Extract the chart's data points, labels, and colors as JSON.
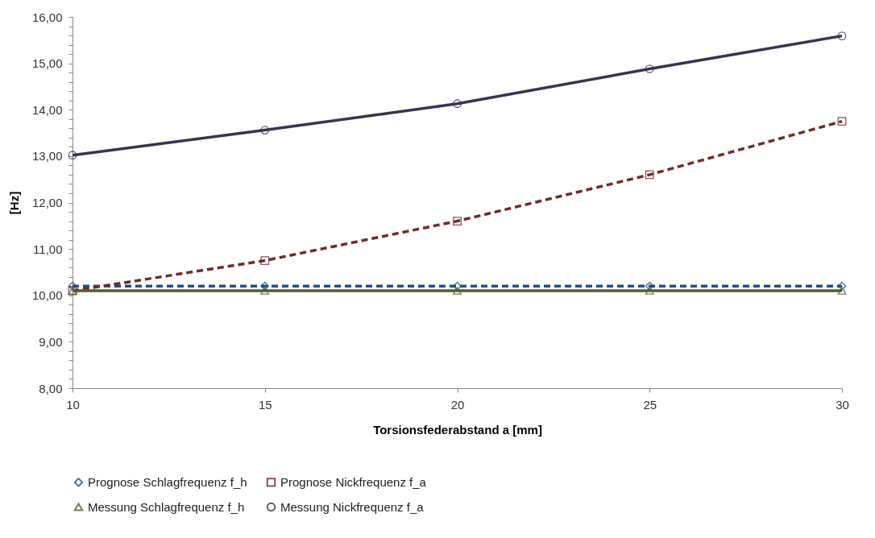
{
  "chart_data": {
    "type": "line",
    "xlabel": "Torsionsfederabstand a [mm]",
    "ylabel": "[Hz]",
    "x": [
      10,
      15,
      20,
      25,
      30
    ],
    "xlim": [
      10,
      30
    ],
    "xticks": [
      10,
      15,
      20,
      25,
      30
    ],
    "ylim": [
      8,
      16
    ],
    "yticks": [
      {
        "value": 8,
        "label": "8,00"
      },
      {
        "value": 8.2,
        "label": null
      },
      {
        "value": 8.4,
        "label": null
      },
      {
        "value": 8.6,
        "label": null
      },
      {
        "value": 8.8,
        "label": null
      },
      {
        "value": 9,
        "label": "9,00"
      },
      {
        "value": 9.2,
        "label": null
      },
      {
        "value": 9.4,
        "label": null
      },
      {
        "value": 9.6,
        "label": null
      },
      {
        "value": 9.8,
        "label": null
      },
      {
        "value": 10,
        "label": "10,00"
      },
      {
        "value": 10.2,
        "label": null
      },
      {
        "value": 10.4,
        "label": null
      },
      {
        "value": 10.6,
        "label": null
      },
      {
        "value": 10.8,
        "label": null
      },
      {
        "value": 11,
        "label": "11,00"
      },
      {
        "value": 11.2,
        "label": null
      },
      {
        "value": 11.4,
        "label": null
      },
      {
        "value": 11.6,
        "label": null
      },
      {
        "value": 11.8,
        "label": null
      },
      {
        "value": 12,
        "label": "12,00"
      },
      {
        "value": 12.2,
        "label": null
      },
      {
        "value": 12.4,
        "label": null
      },
      {
        "value": 12.6,
        "label": null
      },
      {
        "value": 12.8,
        "label": null
      },
      {
        "value": 13,
        "label": "13,00"
      },
      {
        "value": 13.2,
        "label": null
      },
      {
        "value": 13.4,
        "label": null
      },
      {
        "value": 13.6,
        "label": null
      },
      {
        "value": 13.8,
        "label": null
      },
      {
        "value": 14,
        "label": "14,00"
      },
      {
        "value": 14.2,
        "label": null
      },
      {
        "value": 14.4,
        "label": null
      },
      {
        "value": 14.6,
        "label": null
      },
      {
        "value": 14.8,
        "label": null
      },
      {
        "value": 15,
        "label": "15,00"
      },
      {
        "value": 15.2,
        "label": null
      },
      {
        "value": 15.4,
        "label": null
      },
      {
        "value": 15.6,
        "label": null
      },
      {
        "value": 15.8,
        "label": null
      },
      {
        "value": 16,
        "label": "16,00"
      }
    ],
    "grid": false,
    "legend": "bottom",
    "series": [
      {
        "name": "Prognose Schlagfrequenz f_h",
        "color": "#1f4e8c",
        "line_style": "dashed",
        "marker": "diamond",
        "values": [
          10.2,
          10.2,
          10.2,
          10.2,
          10.2
        ]
      },
      {
        "name": "Prognose Nickfrequenz f_a",
        "color": "#722a2a",
        "line_style": "dashed",
        "marker": "square",
        "values": [
          10.1,
          10.75,
          11.6,
          12.6,
          13.75
        ]
      },
      {
        "name": "Messung Schlagfrequenz f_h",
        "color": "#4f6228",
        "line_style": "solid",
        "marker": "triangle",
        "values": [
          10.1,
          10.1,
          10.1,
          10.1,
          10.1
        ]
      },
      {
        "name": "Messung Nickfrequenz f_a",
        "color": "#3f3151",
        "line_style": "solid",
        "marker": "circle",
        "values": [
          13.02,
          13.56,
          14.13,
          14.88,
          15.59
        ]
      }
    ]
  }
}
